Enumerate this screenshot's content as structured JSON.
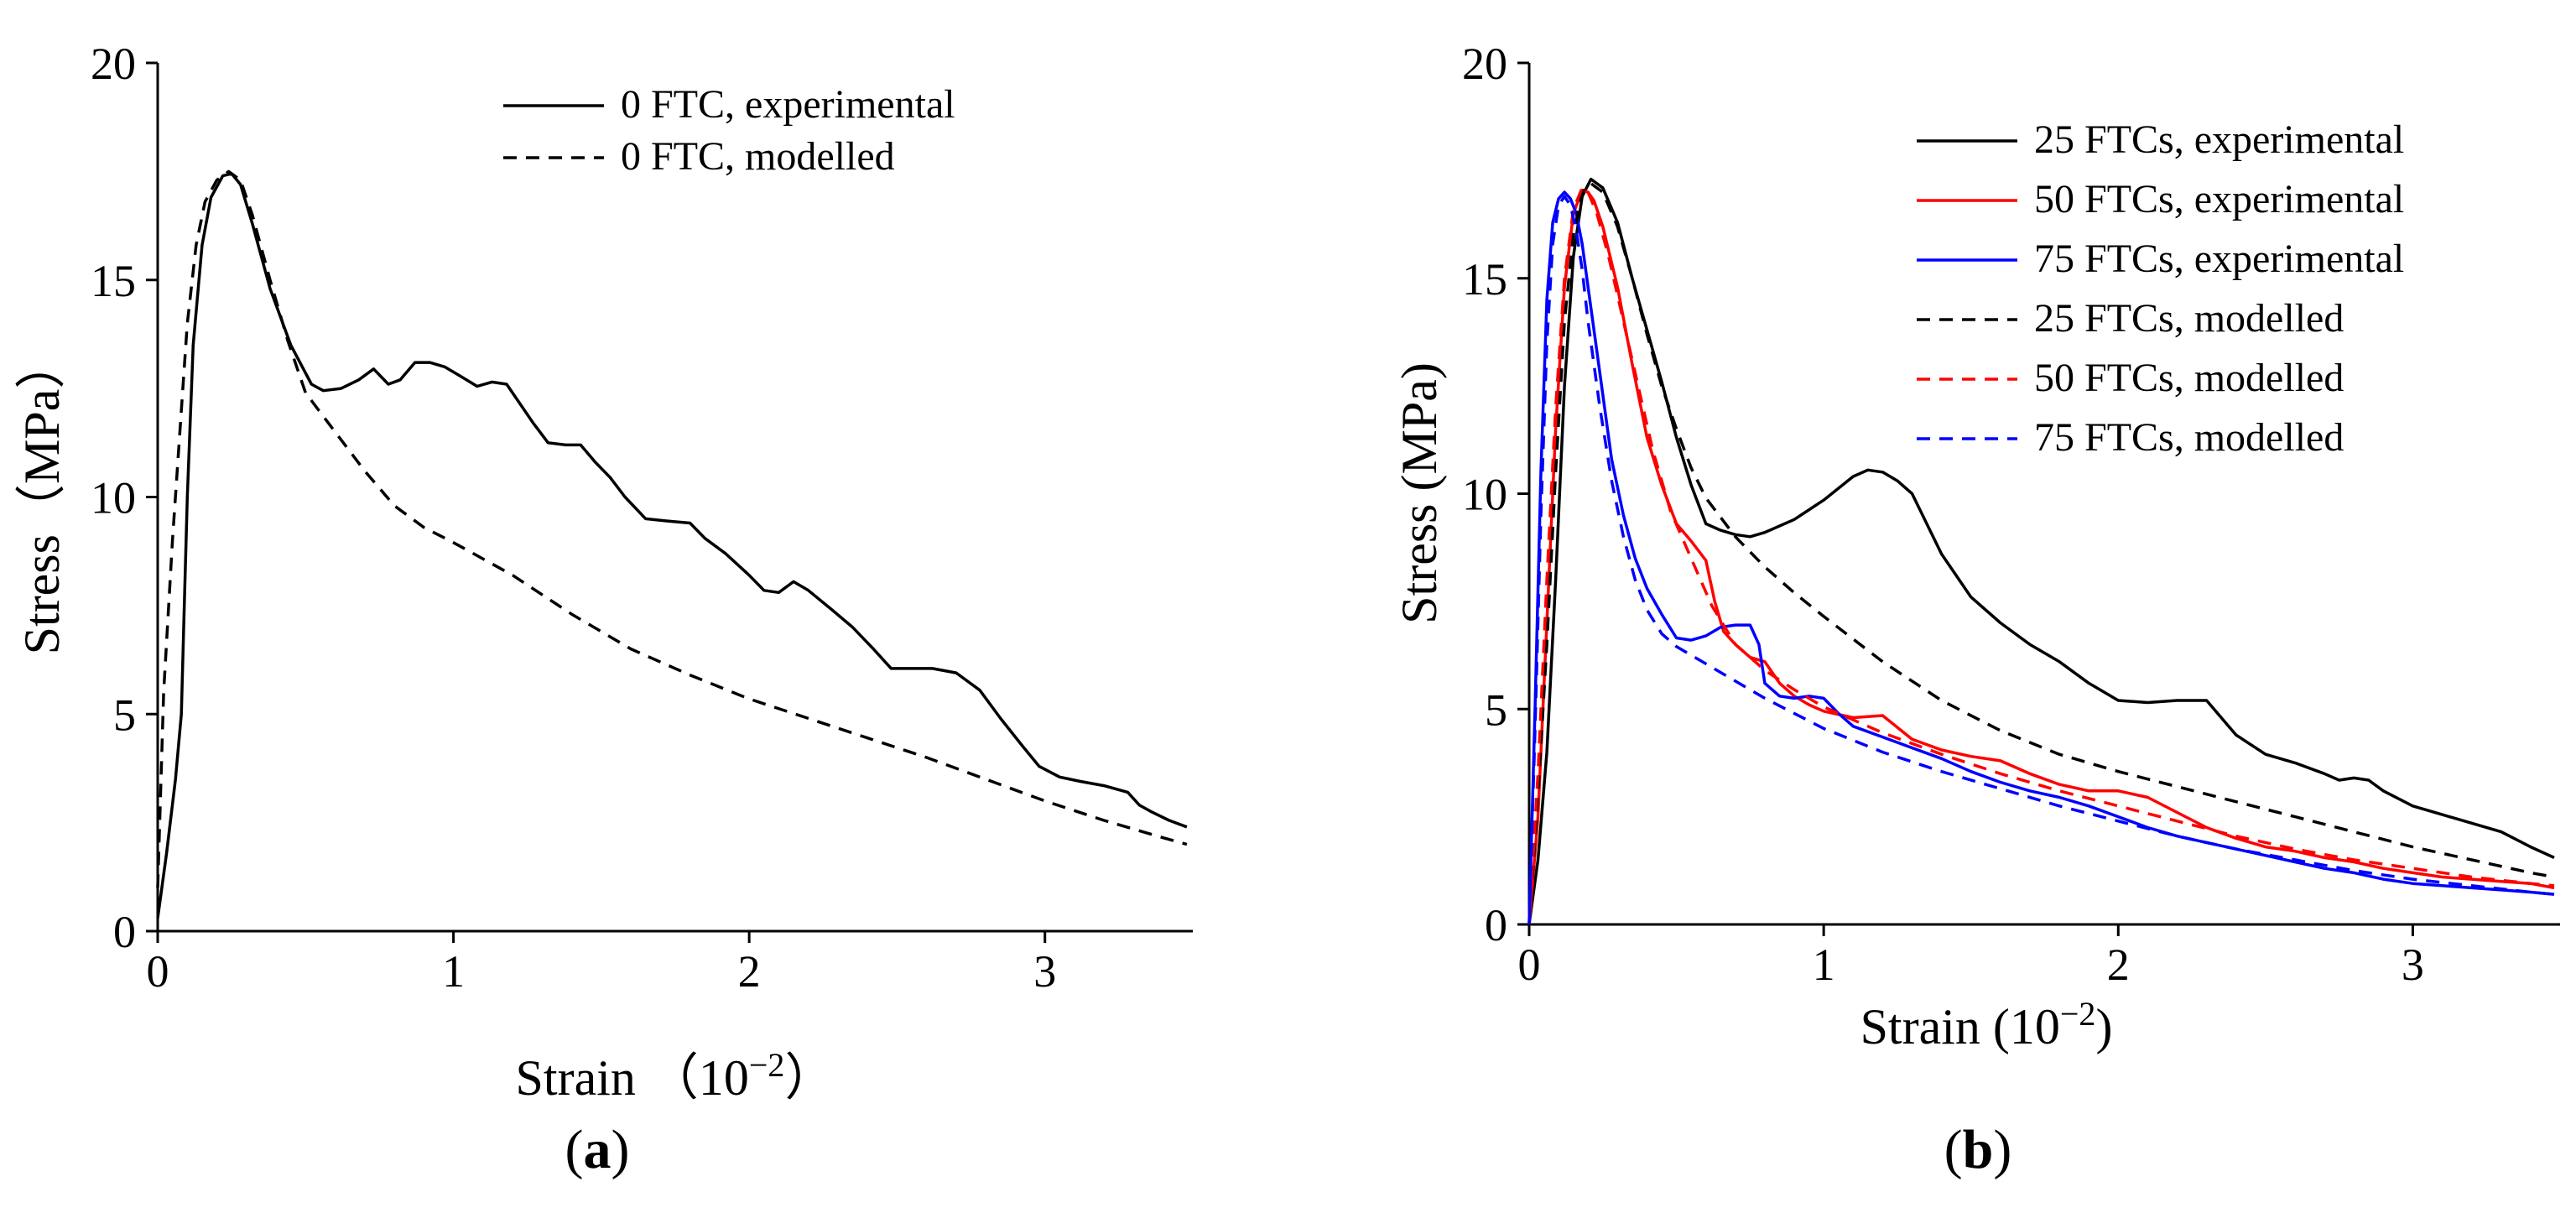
{
  "chart_data": [
    {
      "panel": "(a)",
      "panel_label": {
        "open": "(",
        "letter": "a",
        "close": ")"
      },
      "type": "line",
      "title": "",
      "xlabel": "Strain （10",
      "xlabel_exp": "−2",
      "xlabel_close": "）",
      "ylabel": "Stress（MPa）",
      "xlim": [
        0,
        3.5
      ],
      "ylim": [
        0,
        20
      ],
      "xticks": [
        0,
        1,
        2,
        3
      ],
      "yticks": [
        0,
        5,
        10,
        15,
        20
      ],
      "grid": false,
      "legend_position": "top-right",
      "series": [
        {
          "name": "0 FTC, experimental",
          "color": "#000000",
          "dash": "solid",
          "x": [
            0,
            0.03,
            0.06,
            0.08,
            0.09,
            0.1,
            0.12,
            0.15,
            0.18,
            0.22,
            0.25,
            0.28,
            0.32,
            0.38,
            0.45,
            0.52,
            0.56,
            0.62,
            0.68,
            0.73,
            0.78,
            0.82,
            0.87,
            0.92,
            0.97,
            1.02,
            1.08,
            1.13,
            1.18,
            1.22,
            1.27,
            1.32,
            1.38,
            1.43,
            1.48,
            1.53,
            1.58,
            1.65,
            1.72,
            1.8,
            1.85,
            1.92,
            2.0,
            2.05,
            2.1,
            2.15,
            2.2,
            2.28,
            2.35,
            2.42,
            2.48,
            2.55,
            2.62,
            2.7,
            2.78,
            2.85,
            2.92,
            2.98,
            3.05,
            3.12,
            3.2,
            3.28,
            3.32,
            3.36,
            3.42,
            3.48
          ],
          "values": [
            0.3,
            1.8,
            3.5,
            5.0,
            7.5,
            10.0,
            13.5,
            15.8,
            16.9,
            17.4,
            17.45,
            17.2,
            16.3,
            14.8,
            13.5,
            12.6,
            12.45,
            12.5,
            12.7,
            12.95,
            12.6,
            12.7,
            13.1,
            13.1,
            13.0,
            12.8,
            12.55,
            12.65,
            12.6,
            12.2,
            11.7,
            11.25,
            11.2,
            11.2,
            10.8,
            10.45,
            10.0,
            9.5,
            9.45,
            9.4,
            9.05,
            8.7,
            8.2,
            7.85,
            7.8,
            8.05,
            7.85,
            7.4,
            7.0,
            6.5,
            6.05,
            6.05,
            6.05,
            5.95,
            5.55,
            4.9,
            4.3,
            3.8,
            3.55,
            3.45,
            3.35,
            3.2,
            2.9,
            2.75,
            2.55,
            2.4
          ]
        },
        {
          "name": "0 FTC, modelled",
          "color": "#000000",
          "dash": "dashed",
          "x": [
            0,
            0.02,
            0.05,
            0.08,
            0.1,
            0.13,
            0.16,
            0.2,
            0.24,
            0.28,
            0.32,
            0.38,
            0.44,
            0.5,
            0.6,
            0.7,
            0.8,
            0.9,
            1.0,
            1.2,
            1.4,
            1.6,
            1.8,
            2.0,
            2.2,
            2.4,
            2.6,
            2.8,
            3.0,
            3.2,
            3.4,
            3.48
          ],
          "values": [
            1.0,
            5.5,
            9.0,
            12.0,
            14.0,
            15.8,
            16.8,
            17.3,
            17.5,
            17.3,
            16.5,
            15.0,
            13.6,
            12.4,
            11.5,
            10.6,
            9.8,
            9.3,
            8.95,
            8.2,
            7.3,
            6.5,
            5.9,
            5.35,
            4.9,
            4.45,
            4.0,
            3.5,
            3.0,
            2.55,
            2.15,
            2.0
          ]
        }
      ]
    },
    {
      "panel": "(b)",
      "panel_label": {
        "open": "(",
        "letter": "b",
        "close": ")"
      },
      "type": "line",
      "title": "",
      "xlabel": "Strain (10",
      "xlabel_exp": "−2",
      "xlabel_close": ")",
      "ylabel": "Stress (MPa)",
      "xlim": [
        0,
        3.5
      ],
      "ylim": [
        0,
        20
      ],
      "xticks": [
        0,
        1,
        2,
        3
      ],
      "yticks": [
        0,
        5,
        10,
        15,
        20
      ],
      "grid": false,
      "legend_position": "top-right",
      "series": [
        {
          "name": "25 FTCs, experimental",
          "color": "#000000",
          "dash": "solid",
          "x": [
            0,
            0.03,
            0.06,
            0.09,
            0.12,
            0.15,
            0.18,
            0.21,
            0.25,
            0.3,
            0.35,
            0.4,
            0.45,
            0.5,
            0.55,
            0.6,
            0.65,
            0.7,
            0.75,
            0.8,
            0.9,
            1.0,
            1.1,
            1.15,
            1.2,
            1.25,
            1.3,
            1.4,
            1.5,
            1.6,
            1.7,
            1.8,
            1.9,
            2.0,
            2.1,
            2.2,
            2.3,
            2.4,
            2.5,
            2.6,
            2.7,
            2.75,
            2.8,
            2.85,
            2.9,
            3.0,
            3.1,
            3.2,
            3.3,
            3.4,
            3.48
          ],
          "values": [
            0,
            1.5,
            4.0,
            8.0,
            12.5,
            15.5,
            16.9,
            17.3,
            17.1,
            16.3,
            15.0,
            13.8,
            12.6,
            11.3,
            10.2,
            9.3,
            9.15,
            9.05,
            9.0,
            9.1,
            9.4,
            9.85,
            10.4,
            10.55,
            10.5,
            10.3,
            10.0,
            8.6,
            7.6,
            7.0,
            6.5,
            6.1,
            5.6,
            5.2,
            5.15,
            5.2,
            5.2,
            4.4,
            3.95,
            3.75,
            3.5,
            3.35,
            3.4,
            3.35,
            3.1,
            2.75,
            2.55,
            2.35,
            2.15,
            1.8,
            1.55
          ]
        },
        {
          "name": "50 FTCs, experimental",
          "color": "#ff0000",
          "dash": "solid",
          "x": [
            0,
            0.03,
            0.06,
            0.09,
            0.12,
            0.15,
            0.18,
            0.2,
            0.22,
            0.25,
            0.3,
            0.35,
            0.4,
            0.45,
            0.5,
            0.55,
            0.6,
            0.63,
            0.66,
            0.7,
            0.75,
            0.8,
            0.85,
            0.9,
            0.95,
            1.0,
            1.1,
            1.2,
            1.3,
            1.4,
            1.5,
            1.6,
            1.7,
            1.8,
            1.9,
            2.0,
            2.1,
            2.2,
            2.3,
            2.4,
            2.5,
            2.6,
            2.7,
            2.8,
            2.9,
            3.0,
            3.1,
            3.2,
            3.3,
            3.4,
            3.48
          ],
          "values": [
            0,
            2.5,
            7.0,
            11.5,
            14.8,
            16.5,
            17.05,
            17.0,
            16.8,
            16.2,
            14.8,
            13.0,
            11.3,
            10.2,
            9.3,
            8.9,
            8.45,
            7.5,
            6.8,
            6.5,
            6.2,
            6.1,
            5.6,
            5.3,
            5.1,
            4.95,
            4.8,
            4.85,
            4.3,
            4.05,
            3.9,
            3.8,
            3.5,
            3.25,
            3.1,
            3.1,
            2.95,
            2.6,
            2.25,
            2.0,
            1.8,
            1.7,
            1.55,
            1.45,
            1.3,
            1.2,
            1.1,
            1.05,
            1.0,
            0.95,
            0.85
          ]
        },
        {
          "name": "75 FTCs, experimental",
          "color": "#0000ff",
          "dash": "solid",
          "x": [
            0,
            0.02,
            0.04,
            0.06,
            0.08,
            0.1,
            0.12,
            0.14,
            0.16,
            0.18,
            0.2,
            0.24,
            0.28,
            0.32,
            0.36,
            0.4,
            0.45,
            0.5,
            0.55,
            0.6,
            0.65,
            0.7,
            0.75,
            0.78,
            0.8,
            0.85,
            0.9,
            0.95,
            1.0,
            1.05,
            1.1,
            1.2,
            1.3,
            1.4,
            1.5,
            1.6,
            1.7,
            1.8,
            1.9,
            2.0,
            2.1,
            2.2,
            2.3,
            2.4,
            2.5,
            2.6,
            2.7,
            2.8,
            2.9,
            3.0,
            3.1,
            3.2,
            3.3,
            3.4,
            3.48
          ],
          "values": [
            0,
            5.0,
            10.5,
            14.5,
            16.3,
            16.85,
            17.0,
            16.85,
            16.5,
            15.8,
            14.8,
            12.8,
            10.8,
            9.5,
            8.5,
            7.8,
            7.2,
            6.65,
            6.6,
            6.7,
            6.9,
            6.95,
            6.95,
            6.5,
            5.6,
            5.3,
            5.25,
            5.3,
            5.25,
            4.9,
            4.6,
            4.35,
            4.1,
            3.85,
            3.55,
            3.3,
            3.1,
            2.95,
            2.75,
            2.5,
            2.25,
            2.05,
            1.9,
            1.75,
            1.6,
            1.45,
            1.3,
            1.2,
            1.05,
            0.95,
            0.9,
            0.85,
            0.8,
            0.75,
            0.7
          ]
        },
        {
          "name": "25 FTCs, modelled",
          "color": "#000000",
          "dash": "dashed",
          "x": [
            0,
            0.03,
            0.06,
            0.09,
            0.12,
            0.15,
            0.18,
            0.21,
            0.25,
            0.3,
            0.35,
            0.4,
            0.45,
            0.5,
            0.55,
            0.6,
            0.7,
            0.8,
            0.9,
            1.0,
            1.2,
            1.4,
            1.6,
            1.8,
            2.0,
            2.2,
            2.4,
            2.6,
            2.8,
            3.0,
            3.2,
            3.4,
            3.48
          ],
          "values": [
            0,
            3.0,
            6.5,
            10.5,
            14.0,
            16.0,
            17.0,
            17.2,
            17.0,
            16.2,
            15.0,
            13.7,
            12.5,
            11.5,
            10.6,
            9.9,
            9.0,
            8.3,
            7.7,
            7.15,
            6.1,
            5.2,
            4.5,
            3.95,
            3.55,
            3.2,
            2.85,
            2.5,
            2.15,
            1.8,
            1.5,
            1.2,
            1.1
          ]
        },
        {
          "name": "50 FTCs, modelled",
          "color": "#ff0000",
          "dash": "dashed",
          "x": [
            0,
            0.03,
            0.06,
            0.09,
            0.12,
            0.15,
            0.18,
            0.2,
            0.23,
            0.27,
            0.32,
            0.37,
            0.42,
            0.48,
            0.55,
            0.62,
            0.7,
            0.8,
            0.9,
            1.0,
            1.2,
            1.4,
            1.6,
            1.8,
            2.0,
            2.2,
            2.4,
            2.6,
            2.8,
            3.0,
            3.2,
            3.4,
            3.48
          ],
          "values": [
            0,
            3.5,
            8.0,
            12.0,
            15.0,
            16.6,
            17.1,
            17.0,
            16.5,
            15.5,
            14.0,
            12.5,
            11.0,
            9.6,
            8.5,
            7.4,
            6.5,
            5.9,
            5.45,
            5.05,
            4.45,
            3.95,
            3.5,
            3.1,
            2.75,
            2.4,
            2.05,
            1.75,
            1.5,
            1.3,
            1.1,
            0.95,
            0.9
          ]
        },
        {
          "name": "75 FTCs, modelled",
          "color": "#0000ff",
          "dash": "dashed",
          "x": [
            0,
            0.02,
            0.04,
            0.06,
            0.08,
            0.1,
            0.12,
            0.14,
            0.16,
            0.18,
            0.2,
            0.24,
            0.28,
            0.32,
            0.36,
            0.4,
            0.45,
            0.5,
            0.6,
            0.7,
            0.8,
            0.9,
            1.0,
            1.2,
            1.4,
            1.6,
            1.8,
            2.0,
            2.2,
            2.4,
            2.6,
            2.8,
            3.0,
            3.2,
            3.4,
            3.48
          ],
          "values": [
            0,
            4.5,
            9.5,
            13.5,
            15.8,
            16.7,
            16.9,
            16.7,
            16.1,
            15.2,
            14.0,
            12.0,
            10.3,
            9.0,
            8.0,
            7.3,
            6.75,
            6.45,
            6.05,
            5.65,
            5.25,
            4.9,
            4.55,
            4.0,
            3.55,
            3.15,
            2.75,
            2.4,
            2.05,
            1.75,
            1.5,
            1.25,
            1.05,
            0.9,
            0.75,
            0.7
          ]
        }
      ]
    }
  ]
}
